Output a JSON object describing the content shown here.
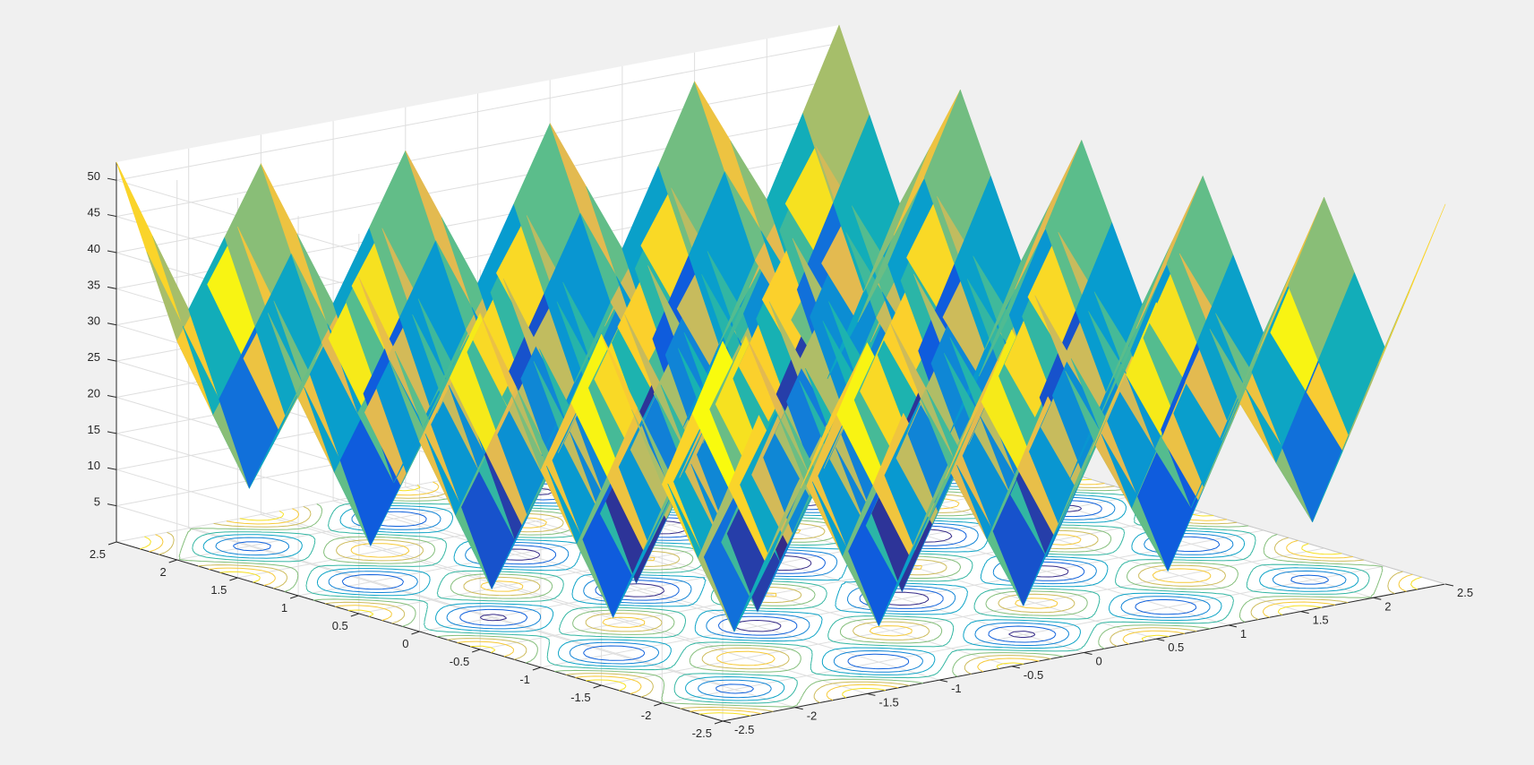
{
  "chart_data": {
    "type": "surface",
    "function": "z = 20 + x^2 + y^2 - 10*(cos(2*pi*x) + cos(2*pi*y))",
    "title": "",
    "xlabel": "",
    "ylabel": "",
    "zlabel": "",
    "xlim": [
      -2.5,
      2.5
    ],
    "ylim": [
      -2.5,
      2.5
    ],
    "zlim": [
      0,
      52.5
    ],
    "grid_step": 0.25,
    "grid": true,
    "colormap": "parula",
    "contour_on_floor": true,
    "x_ticks": [
      -2.5,
      -2,
      -1.5,
      -1,
      -0.5,
      0,
      0.5,
      1,
      1.5,
      2,
      2.5
    ],
    "x_tick_labels": [
      "-2.5",
      "-2",
      "-1.5",
      "-1",
      "-0.5",
      "0",
      "0.5",
      "1",
      "1.5",
      "2",
      "2.5"
    ],
    "y_ticks": [
      -2.5,
      -2,
      -1.5,
      -1,
      -0.5,
      0,
      0.5,
      1,
      1.5,
      2,
      2.5
    ],
    "y_tick_labels": [
      "-2.5",
      "-2",
      "-1.5",
      "-1",
      "-0.5",
      "0",
      "0.5",
      "1",
      "1.5",
      "2",
      "2.5"
    ],
    "z_ticks": [
      5,
      10,
      15,
      20,
      25,
      30,
      35,
      40,
      45,
      50
    ],
    "z_tick_labels": [
      "5",
      "10",
      "15",
      "20",
      "25",
      "30",
      "35",
      "40",
      "45",
      "50"
    ],
    "contour_levels": [
      5,
      10,
      15,
      20,
      25,
      30,
      35,
      40,
      45
    ]
  }
}
